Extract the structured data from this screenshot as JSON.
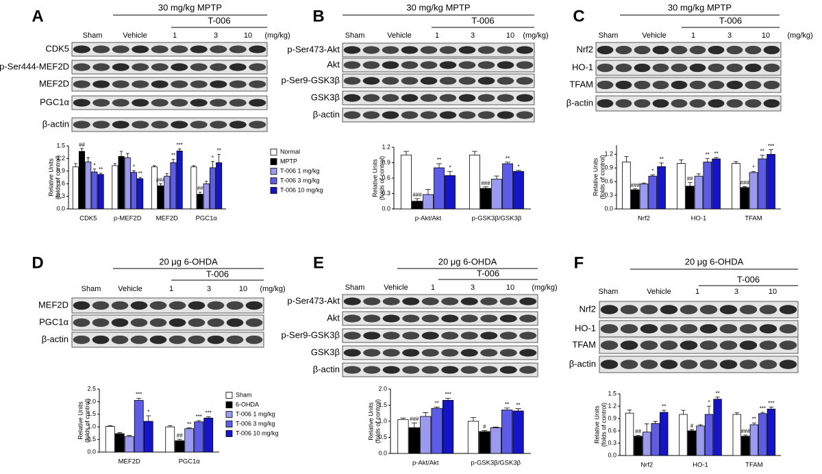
{
  "panels": [
    {
      "letter": "A",
      "treatment": "30 mg/kg MPTP",
      "drug": "T-006",
      "groups": [
        "Sham",
        "Vehicle"
      ],
      "doses": [
        "1",
        "3",
        "10"
      ],
      "unit": "(mg/kg)",
      "blots": [
        "CDK5",
        "p-Ser444-MEF2D",
        "MEF2D",
        "PGC1α",
        "β-actin"
      ]
    },
    {
      "letter": "B",
      "treatment": "30 mg/kg MPTP",
      "drug": "T-006",
      "groups": [
        "Sham",
        "Vehicle"
      ],
      "doses": [
        "1",
        "3",
        "10"
      ],
      "unit": "(mg/kg)",
      "blots": [
        "p-Ser473-Akt",
        "Akt",
        "p-Ser9-GSK3β",
        "GSK3β",
        "β-actin"
      ]
    },
    {
      "letter": "C",
      "treatment": "30 mg/kg MPTP",
      "drug": "T-006",
      "groups": [
        "Sham",
        "Vehicle"
      ],
      "doses": [
        "1",
        "3",
        "10"
      ],
      "unit": "(mg/kg)",
      "blots": [
        "Nrf2",
        "HO-1",
        "TFAM",
        "β-actin"
      ]
    },
    {
      "letter": "D",
      "treatment": "20 μg 6-OHDA",
      "drug": "T-006",
      "groups": [
        "Sham",
        "Vehicle"
      ],
      "doses": [
        "1",
        "3",
        "10"
      ],
      "unit": "(mg/kg)",
      "blots": [
        "MEF2D",
        "PGC1α",
        "β-actin"
      ]
    },
    {
      "letter": "E",
      "treatment": "20 μg 6-OHDA",
      "drug": "T-006",
      "groups": [
        "Sham",
        "Vehicle"
      ],
      "doses": [
        "1",
        "3",
        "10"
      ],
      "unit": "(mg/kg)",
      "blots": [
        "p-Ser473-Akt",
        "Akt",
        "p-Ser9-GSK3β",
        "GSK3β",
        "β-actin"
      ]
    },
    {
      "letter": "F",
      "treatment": "20 μg 6-OHDA",
      "drug": "T-006",
      "groups": [
        "Sham",
        "Vehicle"
      ],
      "doses": [
        "1",
        "3",
        "10"
      ],
      "blots": [
        "Nrf2",
        "HO-1",
        "TFAM",
        "β-actin"
      ]
    }
  ],
  "chart_data": [
    {
      "type": "bar",
      "ylabel": [
        "Relative Units",
        "(folds of control)"
      ],
      "categories": [
        "CDK5",
        "p-MEF2D",
        "MEF2D",
        "PGC1α"
      ],
      "ylim": [
        0,
        1.5
      ],
      "yticks": [
        {
          "value": 0,
          "label": "0.0"
        },
        0.3,
        0.6,
        0.9,
        1.2,
        1.5
      ],
      "series": [
        {
          "name": "Normal",
          "color": "#ffffff",
          "values": [
            1.0,
            1.03,
            1.0,
            1.0
          ],
          "errors": [
            0.08,
            0.05,
            0.03,
            0.03
          ]
        },
        {
          "name": "MPTP",
          "color": "#000000",
          "values": [
            1.37,
            1.25,
            0.55,
            0.35
          ],
          "errors": [
            0.07,
            0.12,
            0.05,
            0.05
          ],
          "sig": [
            "##",
            null,
            "###",
            "##"
          ]
        },
        {
          "name": "T-006 1 mg/kg",
          "color": "#9a9af0",
          "values": [
            1.12,
            1.22,
            0.78,
            0.6
          ],
          "errors": [
            0.1,
            0.1,
            0.06,
            0.06
          ]
        },
        {
          "name": "T-006 3 mg/kg",
          "color": "#5c5ce8",
          "values": [
            0.88,
            0.87,
            1.1,
            0.98
          ],
          "errors": [
            0.07,
            0.04,
            0.08,
            0.15
          ],
          "sig": [
            "*",
            "*",
            "**",
            "*"
          ]
        },
        {
          "name": "T-006 10 mg/kg",
          "color": "#1414c8",
          "values": [
            0.82,
            0.72,
            1.38,
            1.1
          ],
          "errors": [
            0.03,
            0.03,
            0.05,
            0.2
          ],
          "sig": [
            "**",
            "**",
            "***",
            "**"
          ]
        }
      ]
    },
    {
      "type": "bar",
      "ylabel": [
        "Relative Units",
        "(folds of control)"
      ],
      "categories": [
        "p-Akt/Akt",
        "p-GSK3β/GSK3β"
      ],
      "ylim": [
        0,
        1.2
      ],
      "yticks": [
        {
          "value": 0,
          "label": "0.0"
        },
        0.3,
        0.6,
        0.9,
        1.2
      ],
      "series": [
        {
          "color": "#ffffff",
          "values": [
            1.05,
            1.05
          ],
          "errors": [
            0.07,
            0.07
          ]
        },
        {
          "color": "#000000",
          "values": [
            0.15,
            0.4
          ],
          "errors": [
            0.05,
            0.03
          ],
          "sig": [
            "###",
            "###"
          ]
        },
        {
          "color": "#9a9af0",
          "values": [
            0.28,
            0.58
          ],
          "errors": [
            0.1,
            0.06
          ]
        },
        {
          "color": "#5c5ce8",
          "values": [
            0.8,
            0.88
          ],
          "errors": [
            0.08,
            0.03
          ],
          "sig": [
            "**",
            "**"
          ]
        },
        {
          "color": "#1414c8",
          "values": [
            0.65,
            0.73
          ],
          "errors": [
            0.08,
            0.02
          ],
          "sig": [
            "*",
            "*"
          ]
        }
      ]
    },
    {
      "type": "bar",
      "ylabel": [
        "Relative Units",
        "(folds of control)"
      ],
      "categories": [
        "Nrf2",
        "HO-1",
        "TFAM"
      ],
      "ylim": [
        0,
        1.4
      ],
      "yticks": [
        {
          "value": 0,
          "label": "0.0"
        },
        0.3,
        0.6,
        0.9,
        1.2
      ],
      "series": [
        {
          "color": "#ffffff",
          "values": [
            1.03,
            1.0,
            1.0
          ],
          "errors": [
            0.12,
            0.08,
            0.04
          ]
        },
        {
          "color": "#000000",
          "values": [
            0.42,
            0.5,
            0.47
          ],
          "errors": [
            0.02,
            0.08,
            0.02
          ],
          "sig": [
            "###",
            "##",
            "###"
          ]
        },
        {
          "color": "#9a9af0",
          "values": [
            0.55,
            0.72,
            0.8
          ],
          "errors": [
            0.02,
            0.05,
            0.02
          ],
          "sig": [
            null,
            null,
            "*"
          ]
        },
        {
          "color": "#5c5ce8",
          "values": [
            0.72,
            1.03,
            1.1
          ],
          "errors": [
            0.03,
            0.08,
            0.08
          ],
          "sig": [
            "*",
            "**",
            "**"
          ]
        },
        {
          "color": "#1414c8",
          "values": [
            0.93,
            1.1,
            1.2
          ],
          "errors": [
            0.08,
            0.03,
            0.1
          ],
          "sig": [
            "**",
            "**",
            "***"
          ]
        }
      ]
    },
    {
      "type": "bar",
      "ylabel": [
        "Relative Units",
        "(folds of control)"
      ],
      "categories": [
        "MEF2D",
        "PGC1α"
      ],
      "ylim": [
        0,
        2.5
      ],
      "yticks": [
        {
          "value": 0,
          "label": "0.0"
        },
        0.5,
        {
          "value": 1,
          "label": "1.0"
        },
        1.5,
        {
          "value": 2,
          "label": "2.0"
        },
        2.5
      ],
      "series": [
        {
          "name": "Sham",
          "color": "#ffffff",
          "values": [
            1.02,
            1.0
          ],
          "errors": [
            0.03,
            0.05
          ]
        },
        {
          "name": "6-OHDA",
          "color": "#000000",
          "values": [
            0.73,
            0.45
          ],
          "errors": [
            0.04,
            0.06
          ],
          "sig": [
            null,
            "##"
          ]
        },
        {
          "name": "T-006 1 mg/kg",
          "color": "#9a9af0",
          "values": [
            0.62,
            0.93
          ],
          "errors": [
            0.04,
            0.03
          ],
          "sig": [
            null,
            "**"
          ]
        },
        {
          "name": "T-006 3 mg/kg",
          "color": "#5c5ce8",
          "values": [
            2.05,
            1.2
          ],
          "errors": [
            0.08,
            0.05
          ],
          "sig": [
            "***",
            "***"
          ]
        },
        {
          "name": "T-006 10 mg/kg",
          "color": "#1414c8",
          "values": [
            1.22,
            1.35
          ],
          "errors": [
            0.22,
            0.05
          ],
          "sig": [
            "*",
            "***"
          ]
        }
      ]
    },
    {
      "type": "bar",
      "ylabel": [
        "Relative Units",
        "(folds of control)"
      ],
      "categories": [
        "p-Akt/Akt",
        "p-GSK3β/GSK3β"
      ],
      "ylim": [
        0,
        2.0
      ],
      "yticks": [
        {
          "value": 0,
          "label": "0.0"
        },
        0.5,
        {
          "value": 1,
          "label": "1.0"
        },
        1.5,
        {
          "value": 2,
          "label": "2.0"
        }
      ],
      "series": [
        {
          "color": "#ffffff",
          "values": [
            1.05,
            1.0
          ],
          "errors": [
            0.05,
            0.12
          ]
        },
        {
          "color": "#000000",
          "values": [
            0.8,
            0.68
          ],
          "errors": [
            0.15,
            0.03
          ],
          "sig": [
            "###",
            "#"
          ]
        },
        {
          "color": "#9a9af0",
          "values": [
            1.15,
            0.8
          ],
          "errors": [
            0.12,
            0.02
          ]
        },
        {
          "color": "#5c5ce8",
          "values": [
            1.4,
            1.35
          ],
          "errors": [
            0.04,
            0.06
          ],
          "sig": [
            "**",
            "**"
          ]
        },
        {
          "color": "#1414c8",
          "values": [
            1.65,
            1.32
          ],
          "errors": [
            0.06,
            0.07
          ],
          "sig": [
            "***",
            "**"
          ]
        }
      ]
    },
    {
      "type": "bar",
      "ylabel": [
        "Relative Units",
        "(folds of control)"
      ],
      "categories": [
        "Nrf2",
        "HO-1",
        "TFAM"
      ],
      "ylim": [
        0,
        1.5
      ],
      "yticks": [
        {
          "value": 0,
          "label": "0.0"
        },
        0.3,
        0.6,
        0.9,
        1.2,
        1.5
      ],
      "series": [
        {
          "color": "#ffffff",
          "values": [
            1.03,
            1.0,
            1.0
          ],
          "errors": [
            0.08,
            0.1,
            0.04
          ]
        },
        {
          "color": "#000000",
          "values": [
            0.47,
            0.6,
            0.47
          ],
          "errors": [
            0.02,
            0.03,
            0.03
          ],
          "sig": [
            "##",
            "#",
            "###"
          ]
        },
        {
          "color": "#9a9af0",
          "values": [
            0.57,
            0.72,
            0.75
          ],
          "errors": [
            0.2,
            0.03,
            0.04
          ],
          "sig": [
            null,
            null,
            "**"
          ]
        },
        {
          "color": "#5c5ce8",
          "values": [
            0.78,
            1.0,
            1.02
          ],
          "errors": [
            0.05,
            0.2,
            0.03
          ],
          "sig": [
            null,
            "*",
            "***"
          ]
        },
        {
          "color": "#1414c8",
          "values": [
            1.05,
            1.37,
            1.13
          ],
          "errors": [
            0.05,
            0.05,
            0.05
          ],
          "sig": [
            "**",
            "**",
            "***"
          ]
        }
      ]
    }
  ]
}
